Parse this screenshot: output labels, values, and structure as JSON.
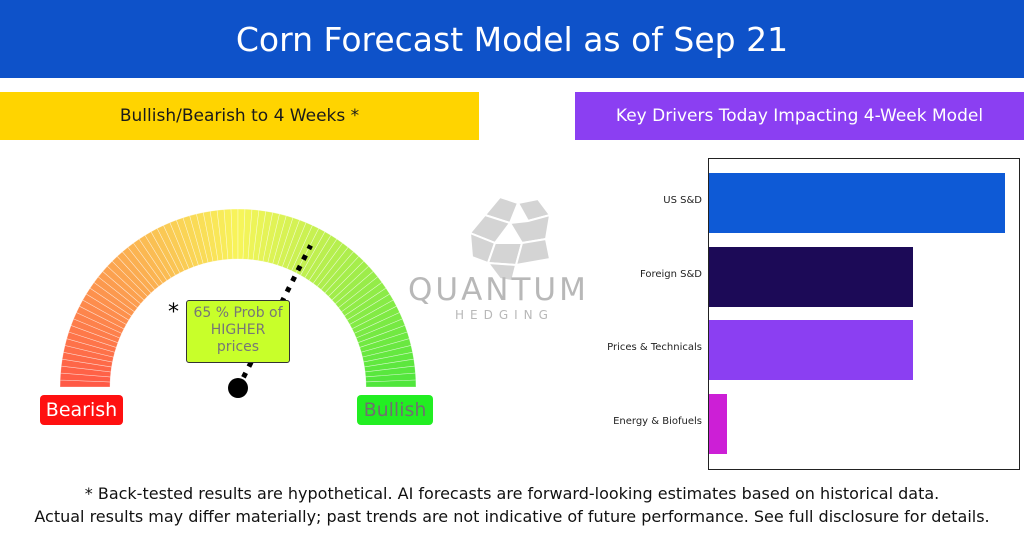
{
  "header": {
    "title": "Corn Forecast Model as of Sep 21"
  },
  "left_band": {
    "label": "Bullish/Bearish to 4 Weeks *"
  },
  "right_band": {
    "label": "Key Drivers Today Impacting 4-Week Model"
  },
  "gauge": {
    "bearish_label": "Bearish",
    "bullish_label": "Bullish",
    "asterisk": "*",
    "probability_lines": [
      "65 % Prob of",
      "HIGHER",
      "prices"
    ],
    "probability_value": 65
  },
  "logo": {
    "word": "QUANTUM",
    "sub": "HEDGING"
  },
  "colors": {
    "header": "#0e52c9",
    "left_band": "#ffd400",
    "right_band": "#8b3ff2",
    "bearish": "#ff1010",
    "bullish": "#22ee22"
  },
  "chart_data": {
    "type": "bar",
    "orientation": "horizontal",
    "categories": [
      "US S&D",
      "Foreign S&D",
      "Prices & Technicals",
      "Energy & Biofuels"
    ],
    "values": [
      1.0,
      0.69,
      0.69,
      0.06
    ],
    "bar_colors": [
      "#0e5ad6",
      "#1c0a57",
      "#8b3ff2",
      "#cc1fd6"
    ],
    "grid": false
  },
  "footer": {
    "line1": "* Back-tested results are hypothetical. AI forecasts are forward-looking estimates based on historical data.",
    "line2": "Actual results may differ materially; past trends are not indicative of future performance. See full disclosure for details."
  }
}
